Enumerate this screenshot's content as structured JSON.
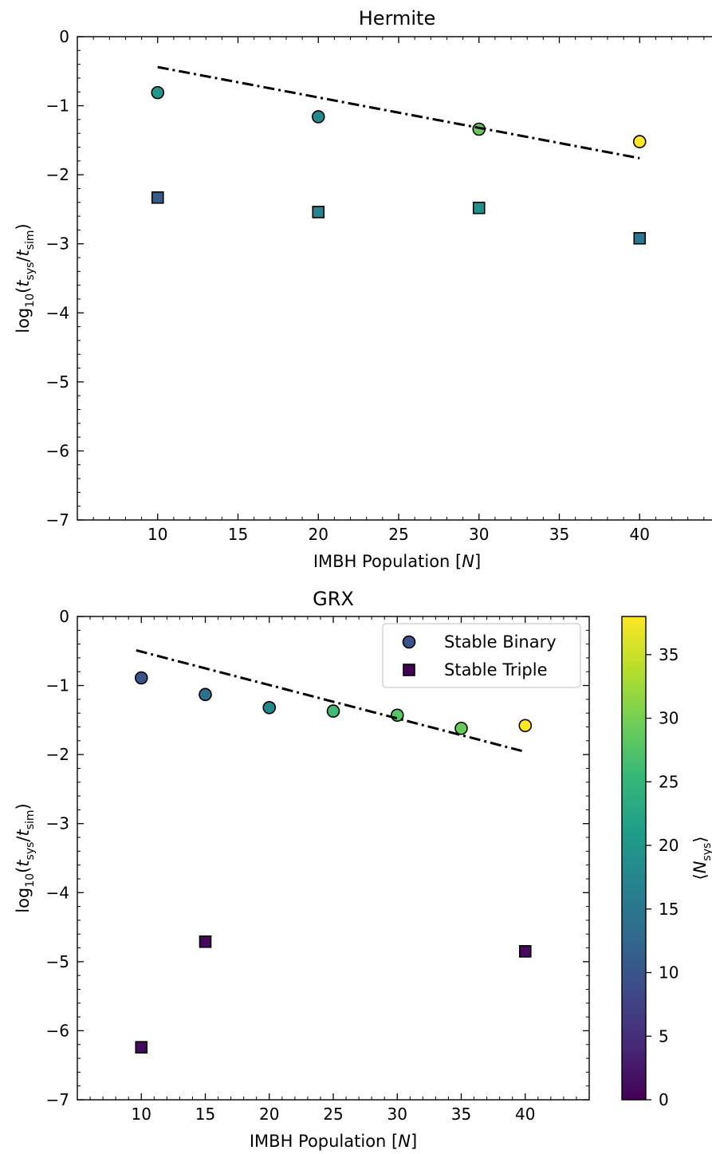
{
  "figure": {
    "colormap": "viridis",
    "colorbar": {
      "label": "⟨N_sys⟩",
      "range": [
        0,
        38
      ],
      "ticks": [
        0,
        5,
        10,
        15,
        20,
        25,
        30,
        35
      ],
      "tick_labels": [
        "0",
        "5",
        "10",
        "15",
        "20",
        "25",
        "30",
        "35"
      ]
    },
    "legend": {
      "placement": "top-right of lower panel",
      "entries": [
        {
          "label": "Stable Binary",
          "marker": "circle",
          "color": "#3b528b"
        },
        {
          "label": "Stable Triple",
          "marker": "square",
          "color": "#440154"
        }
      ]
    }
  },
  "chart_data": [
    {
      "type": "scatter",
      "title": "Hermite",
      "xlabel": "IMBH Population [N]",
      "ylabel": "log10(t_sys/t_sim)",
      "xlim": [
        5,
        45
      ],
      "ylim": [
        -7,
        0
      ],
      "xticks": [
        10,
        15,
        20,
        25,
        30,
        35,
        40
      ],
      "xtick_labels": [
        "10",
        "15",
        "20",
        "25",
        "30",
        "35",
        "40"
      ],
      "yticks": [
        0,
        -1,
        -2,
        -3,
        -4,
        -5,
        -6,
        -7
      ],
      "ytick_labels": [
        "0",
        "−1",
        "−2",
        "−3",
        "−4",
        "−5",
        "−6",
        "−7"
      ],
      "grid": false,
      "series": [
        {
          "marker": "circle",
          "x": [
            10,
            20,
            30,
            40
          ],
          "y": [
            -0.81,
            -1.16,
            -1.34,
            -1.52
          ],
          "color_values": [
            20,
            18,
            29,
            38
          ]
        },
        {
          "marker": "square",
          "x": [
            10,
            20,
            30,
            40
          ],
          "y": [
            -2.33,
            -2.54,
            -2.48,
            -2.92
          ],
          "color_values": [
            11,
            17,
            19,
            15
          ]
        },
        {
          "marker": "dashdot-line",
          "x": [
            10,
            40
          ],
          "y": [
            -0.44,
            -1.76
          ]
        }
      ]
    },
    {
      "type": "scatter",
      "title": "GRX",
      "xlabel": "IMBH Population [N]",
      "ylabel": "log10(t_sys/t_sim)",
      "xlim": [
        5,
        45
      ],
      "ylim": [
        -7,
        0
      ],
      "xticks": [
        10,
        15,
        20,
        25,
        30,
        35,
        40
      ],
      "xtick_labels": [
        "10",
        "15",
        "20",
        "25",
        "30",
        "35",
        "40"
      ],
      "yticks": [
        0,
        -1,
        -2,
        -3,
        -4,
        -5,
        -6,
        -7
      ],
      "ytick_labels": [
        "0",
        "−1",
        "−2",
        "−3",
        "−4",
        "−5",
        "−6",
        "−7"
      ],
      "grid": false,
      "series": [
        {
          "marker": "circle",
          "x": [
            10,
            15,
            20,
            25,
            30,
            35,
            40
          ],
          "y": [
            -0.89,
            -1.13,
            -1.32,
            -1.37,
            -1.43,
            -1.62,
            -1.58
          ],
          "color_values": [
            10,
            14,
            18,
            26,
            28,
            29,
            38
          ]
        },
        {
          "marker": "square",
          "x": [
            10,
            15,
            40
          ],
          "y": [
            -6.24,
            -4.71,
            -4.85
          ],
          "color_values": [
            1,
            1,
            1
          ]
        },
        {
          "marker": "dashdot-line",
          "x": [
            9.6,
            40
          ],
          "y": [
            -0.49,
            -1.96
          ]
        }
      ]
    }
  ]
}
